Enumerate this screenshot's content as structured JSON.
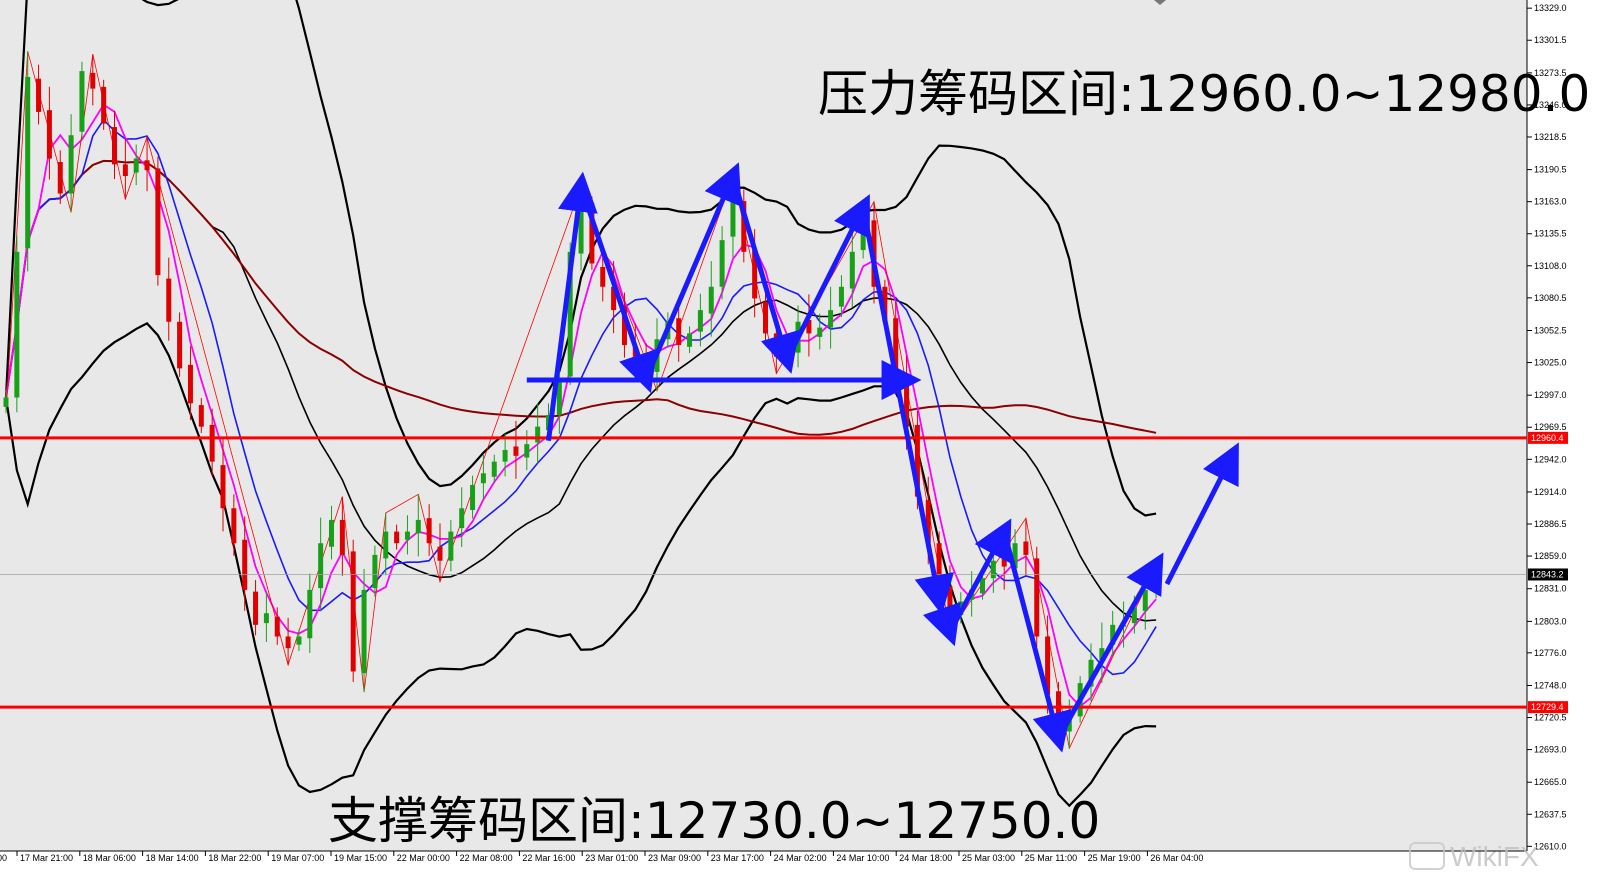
{
  "colors": {
    "background": "#e8e8e8",
    "axis_panel": "#ffffff",
    "bull_candle": "#19a019",
    "bear_candle": "#e00000",
    "bollinger": "#000000",
    "ma_magenta": "#ff00ff",
    "ma_blue": "#1a1aff",
    "ma_long": "#8b0000",
    "key_level": "#ff0000",
    "pattern_arrow": "#1a1aff",
    "zigzag": "#ff0000"
  },
  "annotations": {
    "resistance": "压力筹码区间:12960.0~12980.0",
    "support": "支撑筹码区间:12730.0~12750.0"
  },
  "watermark": "WikiFX",
  "chart_data": {
    "type": "candlestick",
    "x_tick_labels": [
      "17 Mar 21:00",
      "18 Mar 06:00",
      "18 Mar 14:00",
      "18 Mar 22:00",
      "19 Mar 07:00",
      "19 Mar 15:00",
      "22 Mar 00:00",
      "22 Mar 08:00",
      "22 Mar 16:00",
      "23 Mar 01:00",
      "23 Mar 09:00",
      "23 Mar 17:00",
      "24 Mar 02:00",
      "24 Mar 10:00",
      "24 Mar 18:00",
      "25 Mar 03:00",
      "25 Mar 11:00",
      "25 Mar 19:00",
      "26 Mar 04:00"
    ],
    "y_tick_values": [
      13329.0,
      13301.5,
      13273.5,
      13246.0,
      13218.5,
      13190.5,
      13163.0,
      13135.5,
      13108.0,
      13080.5,
      13052.5,
      13025.0,
      12997.0,
      12969.5,
      12942.0,
      12914.0,
      12886.5,
      12859.0,
      12831.0,
      12803.0,
      12776.0,
      12748.0,
      12720.5,
      12693.0,
      12665.0,
      12637.5,
      12610.0
    ],
    "ylim": [
      12606,
      13336
    ],
    "level_labels": [
      "12960.4",
      "12843.2",
      "12729.4"
    ],
    "key_levels": [
      12960.4,
      12729.4
    ],
    "current_price": 12843.2,
    "closes": [
      12995,
      13120,
      13270,
      13240,
      13200,
      13170,
      13220,
      13275,
      13260,
      13230,
      13195,
      13185,
      13200,
      13190,
      13100,
      13060,
      13020,
      12990,
      12970,
      12940,
      12900,
      12870,
      12830,
      12800,
      12810,
      12790,
      12780,
      12790,
      12830,
      12870,
      12890,
      12860,
      12760,
      12830,
      12860,
      12880,
      12870,
      12880,
      12890,
      12870,
      12855,
      12880,
      12900,
      12920,
      12930,
      12940,
      12950,
      12945,
      12955,
      12970,
      12980,
      13010,
      13120,
      13160,
      13110,
      13090,
      13070,
      13040,
      13030,
      13020,
      13045,
      13060,
      13040,
      13050,
      13070,
      13090,
      13130,
      13165,
      13120,
      13080,
      13050,
      13030,
      13035,
      13060,
      13050,
      13055,
      13070,
      13090,
      13120,
      13150,
      13090,
      13060,
      13010,
      12970,
      12910,
      12870,
      12830,
      12810,
      12820,
      12830,
      12840,
      12855,
      12850,
      12870,
      12860,
      12790,
      12740,
      12710,
      12720,
      12750,
      12770,
      12780,
      12800,
      12800,
      12815,
      12830,
      12843
    ]
  }
}
